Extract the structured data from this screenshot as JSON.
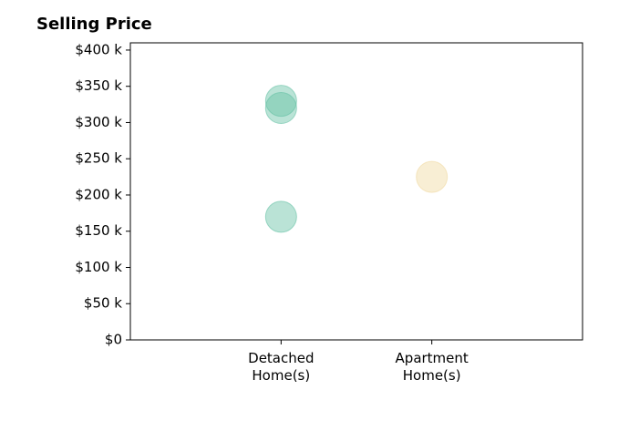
{
  "chart_data": {
    "type": "scatter",
    "title": "Selling Price",
    "xlabel": "",
    "ylabel": "",
    "categories": [
      [
        "Detached",
        "Home(s)"
      ],
      [
        "Apartment",
        "Home(s)"
      ]
    ],
    "xlim": [
      0,
      3
    ],
    "ylim": [
      0,
      410000
    ],
    "yticks": [
      {
        "value": 0,
        "label": "$0"
      },
      {
        "value": 50000,
        "label": "$50 k"
      },
      {
        "value": 100000,
        "label": "$100 k"
      },
      {
        "value": 150000,
        "label": "$150 k"
      },
      {
        "value": 200000,
        "label": "$200 k"
      },
      {
        "value": 250000,
        "label": "$250 k"
      },
      {
        "value": 300000,
        "label": "$300 k"
      },
      {
        "value": 350000,
        "label": "$350 k"
      },
      {
        "value": 400000,
        "label": "$400 k"
      }
    ],
    "grid": false,
    "points": [
      {
        "category": 0,
        "y": 330000,
        "color": "#66c2a5"
      },
      {
        "category": 0,
        "y": 320000,
        "color": "#66c2a5"
      },
      {
        "category": 0,
        "y": 170000,
        "color": "#66c2a5"
      },
      {
        "category": 1,
        "y": 225000,
        "color": "#f0d9a0"
      }
    ]
  }
}
